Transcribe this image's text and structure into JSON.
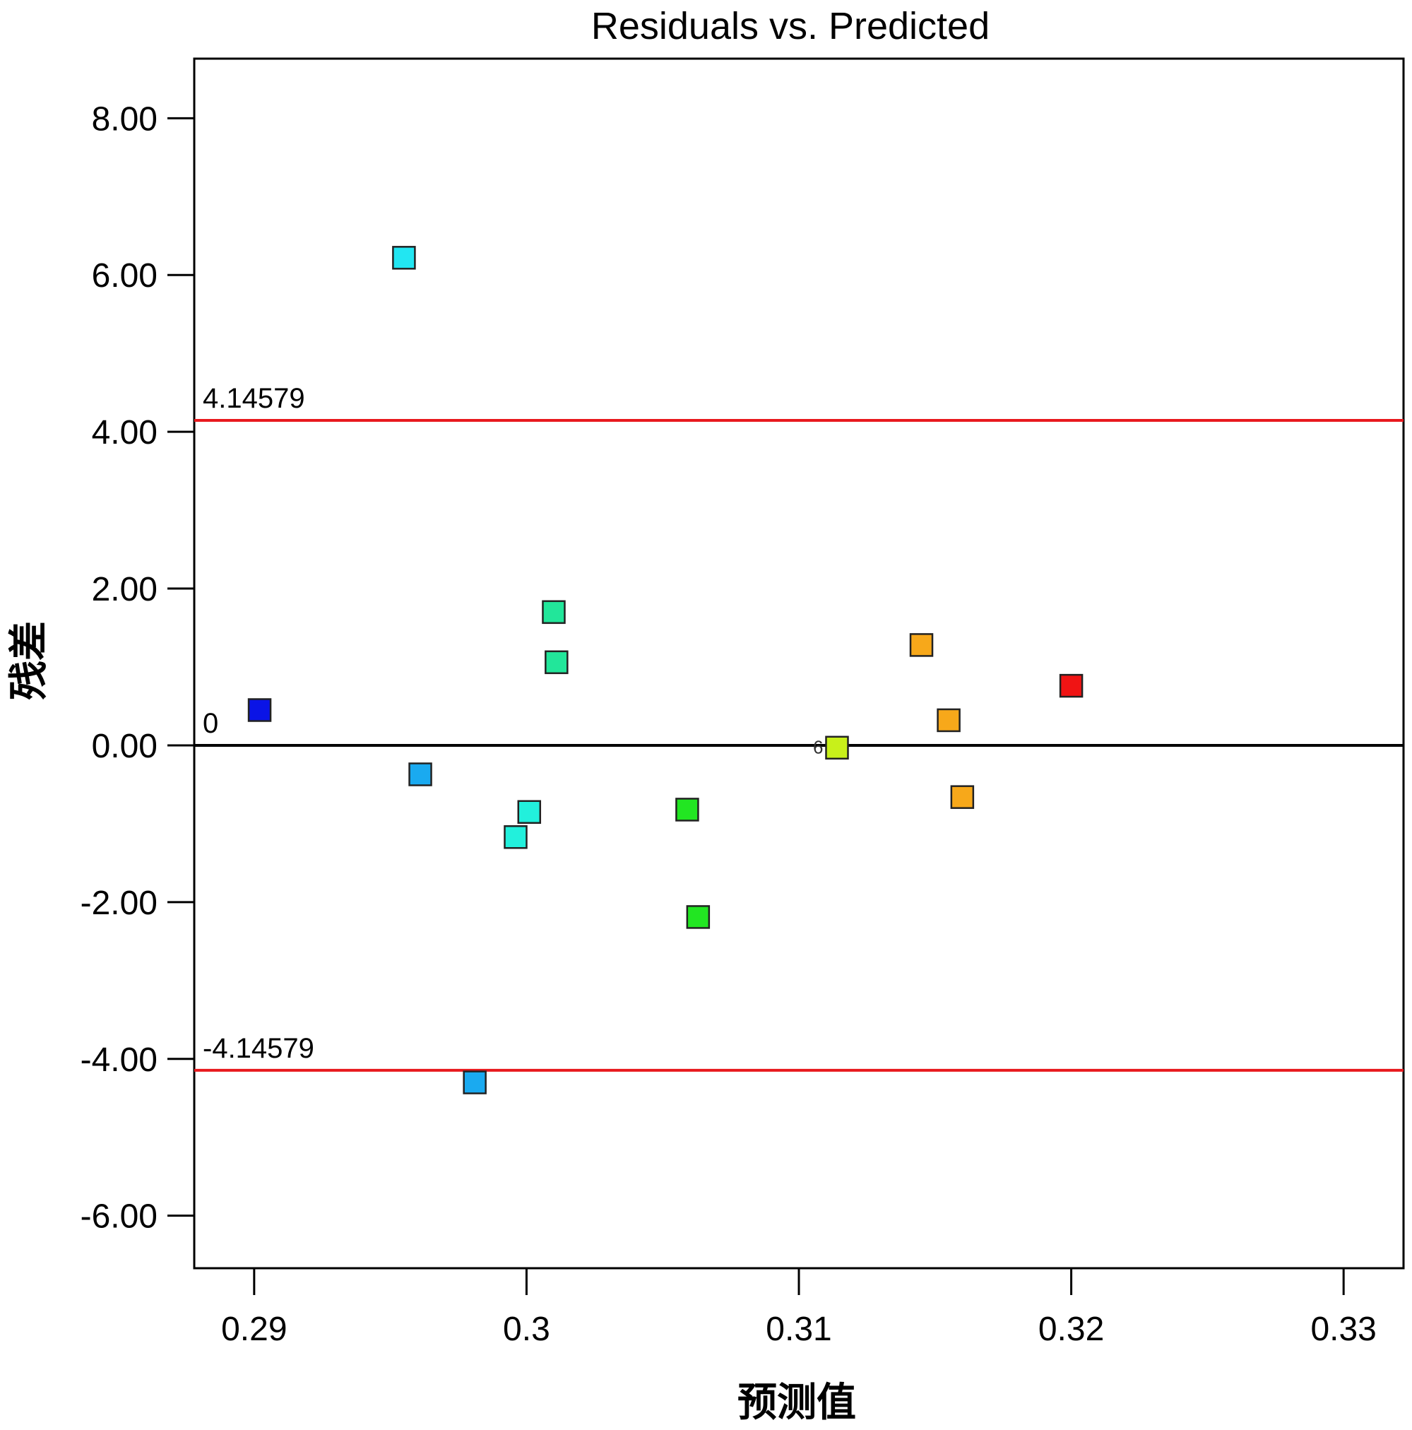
{
  "chart_data": {
    "type": "scatter",
    "title": "Residuals vs. Predicted",
    "xlabel": "预测值",
    "ylabel": "残差",
    "xlim": [
      0.2878,
      0.3322
    ],
    "ylim": [
      -6.67,
      8.76
    ],
    "xticks": [
      0.29,
      0.3,
      0.31,
      0.32,
      0.33
    ],
    "xtick_labels": [
      "0.29",
      "0.3",
      "0.31",
      "0.32",
      "0.33"
    ],
    "yticks": [
      8,
      6,
      4,
      2,
      0,
      -2,
      -4,
      -6
    ],
    "ytick_labels": [
      "8.00",
      "6.00",
      "4.00",
      "2.00",
      "0.00",
      "-2.00",
      "-4.00",
      "-6.00"
    ],
    "grid": false,
    "reference_lines": [
      {
        "name": "upper-limit",
        "y": 4.14579,
        "label": "4.14579",
        "color": "#e8191e"
      },
      {
        "name": "zero-line",
        "y": 0,
        "label": "0",
        "color": "#000000"
      },
      {
        "name": "lower-limit",
        "y": -4.14579,
        "label": "-4.14579",
        "color": "#e8191e"
      }
    ],
    "points": [
      {
        "x": 0.2902,
        "y": 0.45,
        "color": "#0a14e6"
      },
      {
        "x": 0.2955,
        "y": 6.22,
        "color": "#22e6f2"
      },
      {
        "x": 0.2961,
        "y": -0.37,
        "color": "#1aaaf0"
      },
      {
        "x": 0.2981,
        "y": -4.3,
        "color": "#1aaaf0"
      },
      {
        "x": 0.2996,
        "y": -1.17,
        "color": "#22f0dc"
      },
      {
        "x": 0.3001,
        "y": -0.85,
        "color": "#22f0dc"
      },
      {
        "x": 0.301,
        "y": 1.7,
        "color": "#22e69a"
      },
      {
        "x": 0.3011,
        "y": 1.06,
        "color": "#22e69a"
      },
      {
        "x": 0.3059,
        "y": -0.82,
        "color": "#22e622"
      },
      {
        "x": 0.3063,
        "y": -2.19,
        "color": "#22e622"
      },
      {
        "x": 0.3114,
        "y": -0.03,
        "color": "#c8f01a",
        "label": "6"
      },
      {
        "x": 0.3145,
        "y": 1.28,
        "color": "#f7a81a"
      },
      {
        "x": 0.3155,
        "y": 0.32,
        "color": "#f7a81a"
      },
      {
        "x": 0.316,
        "y": -0.66,
        "color": "#f7a81a"
      },
      {
        "x": 0.32,
        "y": 0.76,
        "color": "#f01414"
      }
    ]
  }
}
